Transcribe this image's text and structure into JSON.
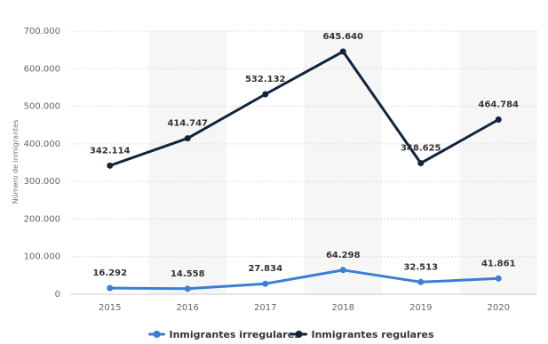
{
  "chart_data": {
    "type": "line",
    "x": [
      "2015",
      "2016",
      "2017",
      "2018",
      "2019",
      "2020"
    ],
    "ylabel": "Número de inmigrantes",
    "ylim": [
      0,
      700000
    ],
    "yticks": [
      "0",
      "100.000",
      "200.000",
      "300.000",
      "400.000",
      "500.000",
      "600.000",
      "700.000"
    ],
    "grid": true,
    "legend_position": "bottom",
    "series": [
      {
        "name": "Inmigrantes irregulares",
        "color": "#3a7fd5",
        "values": [
          16292,
          14558,
          27834,
          64298,
          32513,
          41861
        ],
        "labels": [
          "16.292",
          "14.558",
          "27.834",
          "64.298",
          "32.513",
          "41.861"
        ]
      },
      {
        "name": "Inmigrantes regulares",
        "color": "#10243b",
        "values": [
          342114,
          414747,
          532132,
          645640,
          348625,
          464784
        ],
        "labels": [
          "342.114",
          "414.747",
          "532.132",
          "645.640",
          "348.625",
          "464.784"
        ]
      }
    ]
  }
}
